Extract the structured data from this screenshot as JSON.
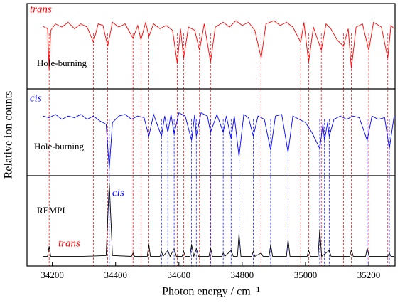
{
  "chart_data": [
    {
      "type": "line",
      "xlim": [
        34120,
        35283
      ],
      "ylim": [
        0,
        1
      ],
      "annotations": [
        {
          "text": "trans",
          "color": "#ff0000"
        },
        {
          "text": "Hole-burning",
          "color": "#000000"
        }
      ],
      "guide_x": [
        34190,
        34330,
        34375,
        34455,
        34480,
        34505,
        34595,
        34615,
        34665,
        34700,
        34860,
        34985,
        35010,
        35050,
        35120,
        35145,
        35200,
        35260
      ],
      "series": [
        {
          "color": "#ff0000",
          "x": [
            34170,
            34185,
            34190,
            34195,
            34210,
            34230,
            34250,
            34270,
            34290,
            34310,
            34330,
            34345,
            34360,
            34375,
            34390,
            34410,
            34430,
            34455,
            34470,
            34480,
            34495,
            34505,
            34520,
            34540,
            34560,
            34580,
            34595,
            34605,
            34615,
            34630,
            34650,
            34665,
            34680,
            34700,
            34715,
            34740,
            34760,
            34780,
            34800,
            34820,
            34840,
            34860,
            34875,
            34900,
            34920,
            34940,
            34960,
            34985,
            34995,
            35010,
            35025,
            35050,
            35065,
            35080,
            35100,
            35120,
            35135,
            35145,
            35160,
            35180,
            35200,
            35215,
            35240,
            35260,
            35270,
            35280
          ],
          "values": [
            0.75,
            0.72,
            0.2,
            0.7,
            0.78,
            0.74,
            0.8,
            0.72,
            0.78,
            0.74,
            0.55,
            0.78,
            0.76,
            0.5,
            0.8,
            0.74,
            0.78,
            0.6,
            0.76,
            0.58,
            0.8,
            0.62,
            0.78,
            0.72,
            0.76,
            0.7,
            0.28,
            0.72,
            0.35,
            0.74,
            0.7,
            0.45,
            0.78,
            0.3,
            0.74,
            0.8,
            0.74,
            0.82,
            0.76,
            0.8,
            0.7,
            0.35,
            0.78,
            0.82,
            0.76,
            0.8,
            0.74,
            0.55,
            0.8,
            0.3,
            0.74,
            0.45,
            0.78,
            0.72,
            0.58,
            0.5,
            0.72,
            0.22,
            0.74,
            0.78,
            0.45,
            0.8,
            0.74,
            0.35,
            0.76,
            0.72
          ]
        }
      ]
    },
    {
      "type": "line",
      "xlim": [
        34120,
        35283
      ],
      "ylim": [
        0,
        1
      ],
      "ylabel": "Relative ion counts",
      "annotations": [
        {
          "text": "cis",
          "color": "#0000ff"
        },
        {
          "text": "Hole-burning",
          "color": "#000000"
        }
      ],
      "guide_x": [
        34380,
        34545,
        34565,
        34585,
        34640,
        34655,
        34700,
        34740,
        34765,
        34790,
        34835,
        34890,
        34945,
        35045,
        35060,
        35075,
        35195,
        35265
      ],
      "series": [
        {
          "color": "#0000ff",
          "x": [
            34170,
            34190,
            34210,
            34230,
            34250,
            34270,
            34290,
            34310,
            34330,
            34350,
            34370,
            34380,
            34390,
            34410,
            34430,
            34450,
            34470,
            34490,
            34505,
            34520,
            34545,
            34555,
            34565,
            34575,
            34585,
            34600,
            34620,
            34640,
            34650,
            34655,
            34670,
            34690,
            34700,
            34720,
            34740,
            34750,
            34765,
            34775,
            34790,
            34805,
            34820,
            34835,
            34850,
            34870,
            34890,
            34905,
            34925,
            34945,
            34960,
            34980,
            35000,
            35020,
            35045,
            35055,
            35060,
            35070,
            35075,
            35090,
            35110,
            35130,
            35150,
            35170,
            35195,
            35210,
            35230,
            35250,
            35265,
            35280
          ],
          "values": [
            0.7,
            0.68,
            0.72,
            0.66,
            0.7,
            0.68,
            0.72,
            0.66,
            0.7,
            0.64,
            0.6,
            0.05,
            0.62,
            0.7,
            0.72,
            0.66,
            0.7,
            0.68,
            0.45,
            0.72,
            0.45,
            0.7,
            0.5,
            0.72,
            0.48,
            0.74,
            0.7,
            0.4,
            0.72,
            0.45,
            0.74,
            0.7,
            0.5,
            0.72,
            0.5,
            0.7,
            0.42,
            0.7,
            0.2,
            0.72,
            0.68,
            0.45,
            0.7,
            0.66,
            0.28,
            0.7,
            0.72,
            0.25,
            0.7,
            0.66,
            0.62,
            0.5,
            0.3,
            0.6,
            0.4,
            0.62,
            0.45,
            0.66,
            0.7,
            0.66,
            0.7,
            0.68,
            0.4,
            0.7,
            0.66,
            0.68,
            0.3,
            0.7
          ]
        }
      ]
    },
    {
      "type": "line",
      "xlim": [
        34120,
        35283
      ],
      "ylim": [
        0,
        1
      ],
      "xticks": [
        34200,
        34400,
        34600,
        34800,
        35000,
        35200
      ],
      "xlabel": "Photon energy / cm⁻¹",
      "annotations": [
        {
          "text": "REMPI",
          "color": "#000000"
        },
        {
          "text": "cis",
          "color": "#0000ff"
        },
        {
          "text": "trans",
          "color": "#ff0000"
        }
      ],
      "series": [
        {
          "color": "#000000",
          "x": [
            34170,
            34185,
            34190,
            34195,
            34300,
            34370,
            34380,
            34390,
            34450,
            34455,
            34460,
            34500,
            34505,
            34510,
            34540,
            34545,
            34550,
            34565,
            34572,
            34585,
            34592,
            34610,
            34615,
            34620,
            34635,
            34640,
            34647,
            34655,
            34662,
            34695,
            34700,
            34706,
            34735,
            34740,
            34745,
            34765,
            34772,
            34785,
            34790,
            34796,
            34830,
            34835,
            34840,
            34860,
            34866,
            34885,
            34890,
            34896,
            34940,
            34945,
            34951,
            35005,
            35010,
            35016,
            35040,
            35045,
            35051,
            35075,
            35081,
            35140,
            35145,
            35151,
            35190,
            35195,
            35201,
            35260,
            35265,
            35270,
            35280
          ],
          "values": [
            0.08,
            0.08,
            0.2,
            0.08,
            0.08,
            0.09,
            0.95,
            0.09,
            0.08,
            0.12,
            0.08,
            0.08,
            0.22,
            0.08,
            0.08,
            0.14,
            0.08,
            0.15,
            0.08,
            0.17,
            0.08,
            0.08,
            0.14,
            0.08,
            0.08,
            0.22,
            0.08,
            0.17,
            0.08,
            0.08,
            0.18,
            0.08,
            0.08,
            0.12,
            0.08,
            0.15,
            0.08,
            0.08,
            0.35,
            0.08,
            0.08,
            0.14,
            0.08,
            0.12,
            0.08,
            0.08,
            0.22,
            0.08,
            0.08,
            0.28,
            0.08,
            0.08,
            0.15,
            0.08,
            0.08,
            0.4,
            0.08,
            0.15,
            0.08,
            0.08,
            0.16,
            0.08,
            0.08,
            0.18,
            0.08,
            0.08,
            0.12,
            0.08,
            0.08
          ]
        }
      ]
    }
  ]
}
